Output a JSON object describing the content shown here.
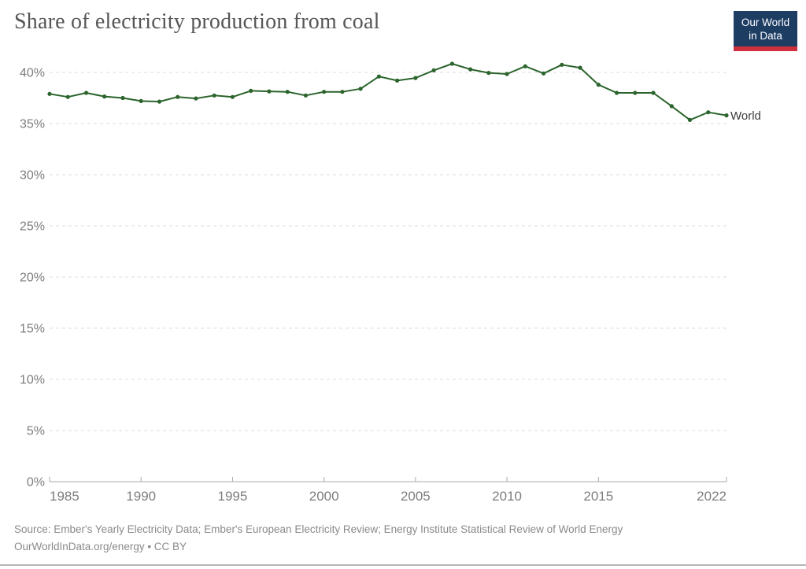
{
  "header": {
    "title": "Share of electricity production from coal"
  },
  "logo": {
    "line1": "Our World",
    "line2": "in Data",
    "bg_color": "#1d3d63",
    "accent_color": "#cf303e",
    "text_color": "#ffffff"
  },
  "chart_data": {
    "type": "line",
    "title": "Share of electricity production from coal",
    "xlabel": "",
    "ylabel": "",
    "xlim": [
      1985,
      2022
    ],
    "ylim": [
      0,
      42
    ],
    "x_ticks": [
      1985,
      1990,
      1995,
      2000,
      2005,
      2010,
      2015,
      2022
    ],
    "y_ticks": [
      0,
      5,
      10,
      15,
      20,
      25,
      30,
      35,
      40
    ],
    "y_tick_suffix": "%",
    "grid": "horizontal dashed",
    "legend_position": "end-of-line label",
    "x": [
      1985,
      1986,
      1987,
      1988,
      1989,
      1990,
      1991,
      1992,
      1993,
      1994,
      1995,
      1996,
      1997,
      1998,
      1999,
      2000,
      2001,
      2002,
      2003,
      2004,
      2005,
      2006,
      2007,
      2008,
      2009,
      2010,
      2011,
      2012,
      2013,
      2014,
      2015,
      2016,
      2017,
      2018,
      2019,
      2020,
      2021,
      2022
    ],
    "series": [
      {
        "name": "World",
        "color": "#2b642c",
        "values": [
          37.9,
          37.6,
          38.0,
          37.65,
          37.5,
          37.2,
          37.15,
          37.6,
          37.45,
          37.75,
          37.6,
          38.2,
          38.15,
          38.1,
          37.75,
          38.1,
          38.1,
          38.4,
          39.6,
          39.2,
          39.45,
          40.2,
          40.85,
          40.3,
          39.95,
          39.85,
          40.6,
          39.9,
          40.75,
          40.45,
          38.8,
          38.0,
          38.0,
          38.0,
          36.7,
          35.35,
          36.1,
          35.8
        ]
      }
    ]
  },
  "footer": {
    "source_line": "Source: Ember's Yearly Electricity Data; Ember's European Electricity Review; Energy Institute Statistical Review of World Energy",
    "license_line": "OurWorldInData.org/energy • CC BY"
  },
  "colors": {
    "line": "#2b642c",
    "grid": "#dcdcdc",
    "axis": "#a8a8a8",
    "tick_label": "#7d7d7d",
    "title": "#565656",
    "footer": "#8a8a8a"
  }
}
